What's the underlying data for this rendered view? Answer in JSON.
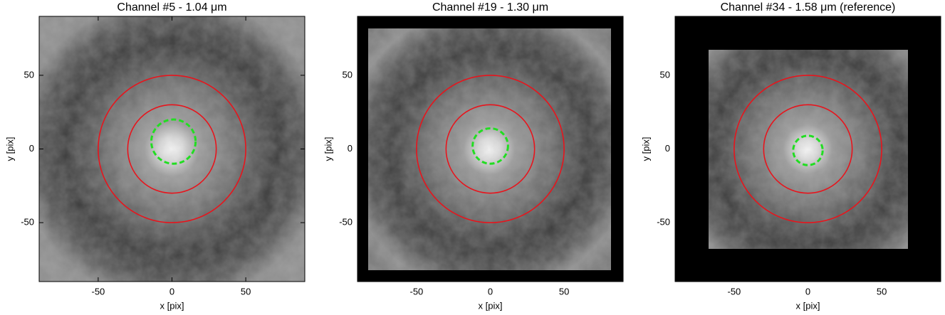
{
  "chart_data": [
    {
      "type": "image",
      "title": "Channel #5 - 1.04 μm",
      "xlabel": "x [pix]",
      "ylabel": "y [pix]",
      "xlim": [
        -90,
        90
      ],
      "ylim": [
        -90,
        90
      ],
      "xticks": [
        -50,
        0,
        50
      ],
      "yticks": [
        -50,
        0,
        50
      ],
      "circles": [
        {
          "x": 0,
          "y": 0,
          "r": 30,
          "color": "#e8141c",
          "style": "solid"
        },
        {
          "x": 0,
          "y": 0,
          "r": 50,
          "color": "#e8141c",
          "style": "solid"
        },
        {
          "x": 1,
          "y": 5,
          "r": 15,
          "color": "#22dd22",
          "style": "dashed"
        }
      ]
    },
    {
      "type": "image",
      "title": "Channel #19 - 1.30 μm",
      "xlabel": "x [pix]",
      "ylabel": "y [pix]",
      "xlim": [
        -90,
        90
      ],
      "ylim": [
        -90,
        90
      ],
      "xticks": [
        -50,
        0,
        50
      ],
      "yticks": [
        -50,
        0,
        50
      ],
      "circles": [
        {
          "x": 0,
          "y": 0,
          "r": 30,
          "color": "#e8141c",
          "style": "solid"
        },
        {
          "x": 0,
          "y": 0,
          "r": 50,
          "color": "#e8141c",
          "style": "solid"
        },
        {
          "x": 0,
          "y": 2,
          "r": 12,
          "color": "#22dd22",
          "style": "dashed"
        }
      ]
    },
    {
      "type": "image",
      "title": "Channel #34 - 1.58 μm (reference)",
      "xlabel": "x [pix]",
      "ylabel": "y [pix]",
      "xlim": [
        -90,
        90
      ],
      "ylim": [
        -90,
        90
      ],
      "xticks": [
        -50,
        0,
        50
      ],
      "yticks": [
        -50,
        0,
        50
      ],
      "circles": [
        {
          "x": 0,
          "y": 0,
          "r": 30,
          "color": "#e8141c",
          "style": "solid"
        },
        {
          "x": 0,
          "y": 0,
          "r": 50,
          "color": "#e8141c",
          "style": "solid"
        },
        {
          "x": 0,
          "y": -1,
          "r": 10,
          "color": "#22dd22",
          "style": "dashed"
        }
      ]
    }
  ]
}
